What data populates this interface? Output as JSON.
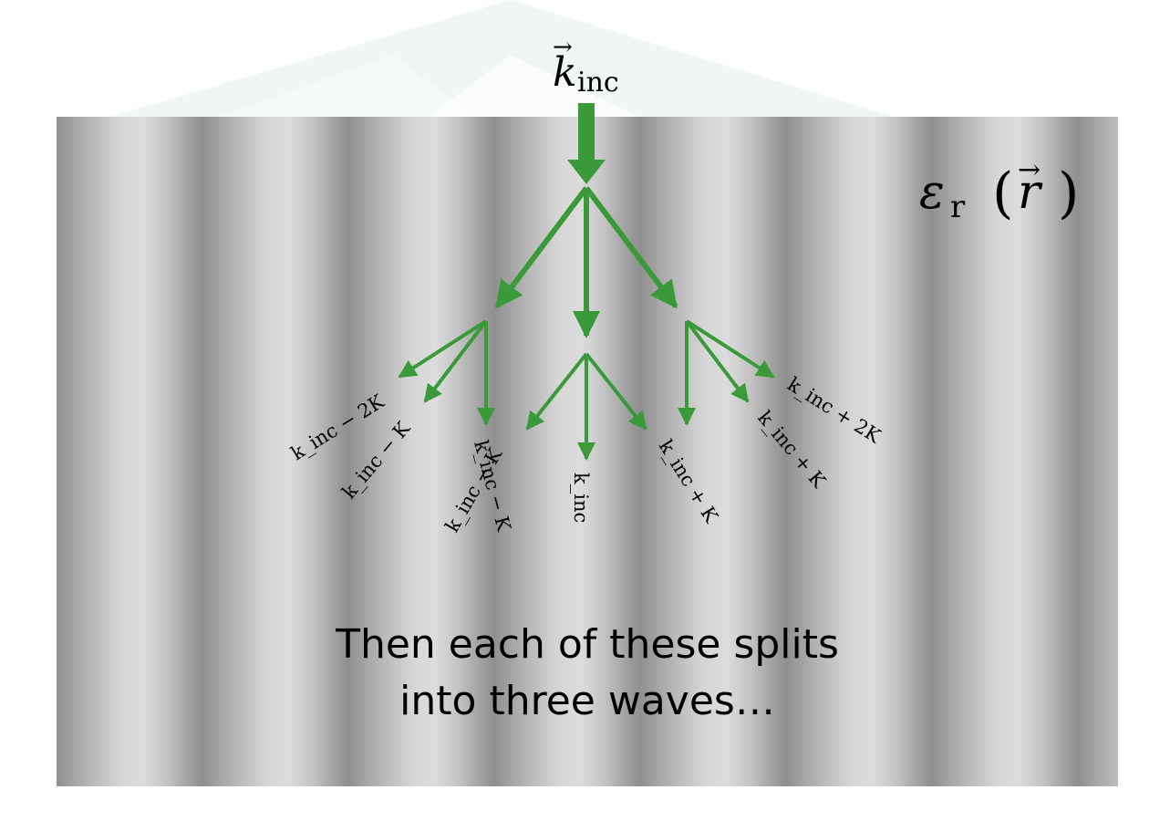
{
  "colors": {
    "arrow": "#3a9a3a",
    "watermark": "#eef6f1"
  },
  "labels": {
    "incident": "k",
    "incident_sub": "inc",
    "permittivity": "ε",
    "permittivity_sub": "r",
    "permittivity_arg": "r",
    "waves": [
      "k_inc − 2K",
      "k_inc − K",
      "k_inc − K",
      "k_inc − K",
      "k_inc",
      "k_inc + K",
      "k_inc + K",
      "k_inc + 2K"
    ]
  },
  "caption": {
    "line1": "Then each of these splits",
    "line2": "into three waves…"
  }
}
